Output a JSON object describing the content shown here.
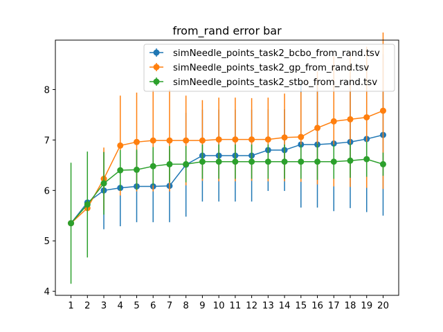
{
  "chart_data": {
    "type": "line",
    "title": "from_rand error bar",
    "xlabel": "",
    "ylabel": "",
    "x": [
      1,
      2,
      3,
      4,
      5,
      6,
      7,
      8,
      9,
      10,
      11,
      12,
      13,
      14,
      15,
      16,
      17,
      18,
      19,
      20
    ],
    "xlim": [
      0.05,
      20.95
    ],
    "ylim": [
      3.92,
      8.98
    ],
    "yticks": [
      4,
      5,
      6,
      7,
      8
    ],
    "grid": false,
    "legend_position": "upper right",
    "error_bars": true,
    "series": [
      {
        "name": "simNeedle_points_task2_bcbo_from_rand.tsv",
        "color": "#1f77b4",
        "values": [
          5.35,
          5.76,
          6.0,
          6.05,
          6.08,
          6.08,
          6.09,
          6.51,
          6.69,
          6.69,
          6.69,
          6.69,
          6.8,
          6.8,
          6.91,
          6.91,
          6.93,
          6.96,
          7.02,
          7.1
        ],
        "errors": [
          0,
          0.05,
          0.77,
          0.76,
          0.71,
          0.71,
          0.72,
          1.03,
          0.91,
          0.91,
          0.91,
          0.91,
          0.81,
          0.81,
          1.25,
          1.25,
          1.34,
          1.31,
          1.45,
          1.6
        ]
      },
      {
        "name": "simNeedle_points_task2_gp_from_rand.tsv",
        "color": "#ff7f0e",
        "values": [
          5.35,
          5.65,
          6.23,
          6.89,
          6.96,
          6.99,
          6.99,
          6.99,
          6.99,
          7.01,
          7.01,
          7.01,
          7.01,
          7.05,
          7.06,
          7.24,
          7.37,
          7.41,
          7.45,
          7.58
        ],
        "errors": [
          0,
          0.05,
          0.62,
          0.99,
          0.98,
          1.01,
          1.01,
          0.89,
          0.8,
          0.83,
          0.83,
          0.82,
          0.83,
          0.87,
          0.89,
          1.12,
          1.29,
          1.34,
          1.4,
          1.55
        ]
      },
      {
        "name": "simNeedle_points_task2_stbo_from_rand.tsv",
        "color": "#2ca02c",
        "values": [
          5.35,
          5.72,
          6.14,
          6.4,
          6.41,
          6.48,
          6.52,
          6.52,
          6.57,
          6.57,
          6.57,
          6.57,
          6.57,
          6.57,
          6.57,
          6.57,
          6.57,
          6.59,
          6.62,
          6.52
        ],
        "errors": [
          1.2,
          1.05,
          0.62,
          0.4,
          0.4,
          0.38,
          0.36,
          0.36,
          0.34,
          0.34,
          0.34,
          0.34,
          0.34,
          0.34,
          0.34,
          0.36,
          0.34,
          0.34,
          0.35,
          0.23
        ]
      }
    ]
  }
}
